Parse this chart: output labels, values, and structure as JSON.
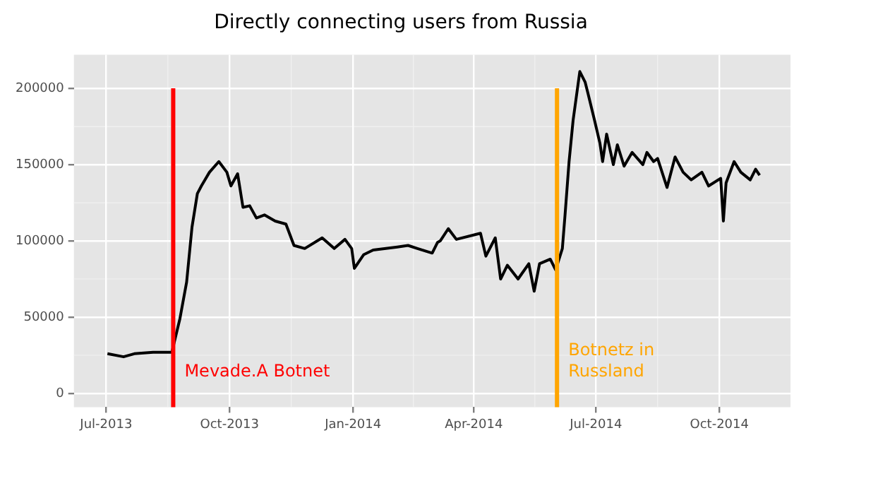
{
  "chart_data": {
    "type": "line",
    "title": "Directly connecting users from Russia",
    "x": [
      "2013-07-02",
      "2013-07-14",
      "2013-07-22",
      "2013-08-05",
      "2013-08-19",
      "2013-08-25",
      "2013-08-30",
      "2013-09-03",
      "2013-09-07",
      "2013-09-10",
      "2013-09-16",
      "2013-09-23",
      "2013-09-29",
      "2013-10-02",
      "2013-10-07",
      "2013-10-11",
      "2013-10-16",
      "2013-10-21",
      "2013-10-27",
      "2013-11-04",
      "2013-11-12",
      "2013-11-18",
      "2013-11-26",
      "2013-12-09",
      "2013-12-18",
      "2013-12-26",
      "2013-12-31",
      "2014-01-02",
      "2014-01-09",
      "2014-01-16",
      "2014-02-03",
      "2014-02-11",
      "2014-02-18",
      "2014-03-01",
      "2014-03-05",
      "2014-03-07",
      "2014-03-13",
      "2014-03-19",
      "2014-04-06",
      "2014-04-10",
      "2014-04-17",
      "2014-04-21",
      "2014-04-26",
      "2014-05-04",
      "2014-05-12",
      "2014-05-16",
      "2014-05-20",
      "2014-05-28",
      "2014-06-01",
      "2014-06-06",
      "2014-06-08",
      "2014-06-11",
      "2014-06-14",
      "2014-06-19",
      "2014-06-23",
      "2014-06-25",
      "2014-06-30",
      "2014-07-04",
      "2014-07-06",
      "2014-07-09",
      "2014-07-14",
      "2014-07-17",
      "2014-07-22",
      "2014-07-28",
      "2014-08-05",
      "2014-08-08",
      "2014-08-13",
      "2014-08-16",
      "2014-08-23",
      "2014-08-29",
      "2014-09-04",
      "2014-09-10",
      "2014-09-18",
      "2014-09-23",
      "2014-10-02",
      "2014-10-04",
      "2014-10-06",
      "2014-10-12",
      "2014-10-17",
      "2014-10-24",
      "2014-10-28",
      "2014-10-31"
    ],
    "series": [
      {
        "color": "#000000",
        "values": [
          26000,
          24000,
          26000,
          27000,
          27000,
          49000,
          73000,
          109000,
          131000,
          136000,
          145000,
          152000,
          145000,
          136000,
          144000,
          122000,
          123000,
          115000,
          117000,
          113000,
          111000,
          97000,
          95000,
          102000,
          95000,
          101000,
          95000,
          82000,
          91000,
          94000,
          96000,
          97000,
          95000,
          92000,
          99000,
          100000,
          108000,
          101000,
          105000,
          90000,
          102000,
          75000,
          84000,
          75000,
          85000,
          67000,
          85000,
          88000,
          81000,
          95000,
          117000,
          152000,
          179000,
          211000,
          204000,
          197000,
          179000,
          164000,
          152000,
          170000,
          150000,
          163000,
          149000,
          158000,
          150000,
          158000,
          152000,
          154000,
          135000,
          155000,
          145000,
          140000,
          145000,
          136000,
          141000,
          113000,
          138000,
          152000,
          145000,
          140000,
          147000,
          143000
        ]
      }
    ],
    "xlim": [
      "2013-06-07",
      "2014-11-23"
    ],
    "xticks": [
      {
        "value": "2013-07-01",
        "label": "Jul-2013"
      },
      {
        "value": "2013-10-01",
        "label": "Oct-2013"
      },
      {
        "value": "2014-01-01",
        "label": "Jan-2014"
      },
      {
        "value": "2014-04-01",
        "label": "Apr-2014"
      },
      {
        "value": "2014-07-01",
        "label": "Jul-2014"
      },
      {
        "value": "2014-10-01",
        "label": "Oct-2014"
      }
    ],
    "ylim": [
      -9000,
      222000
    ],
    "yticks": [
      0,
      50000,
      100000,
      150000,
      200000
    ],
    "grid": true,
    "legend": false,
    "marker": "none",
    "line_style": "solid",
    "ref_lines": [
      {
        "axis": "x",
        "value": "2013-08-20",
        "label": "Mevade.A Botnet",
        "color": "#ff0000"
      },
      {
        "axis": "x",
        "value": "2014-06-02",
        "label": "Botnetz in\nRussland",
        "color": "#ffa500"
      }
    ]
  }
}
